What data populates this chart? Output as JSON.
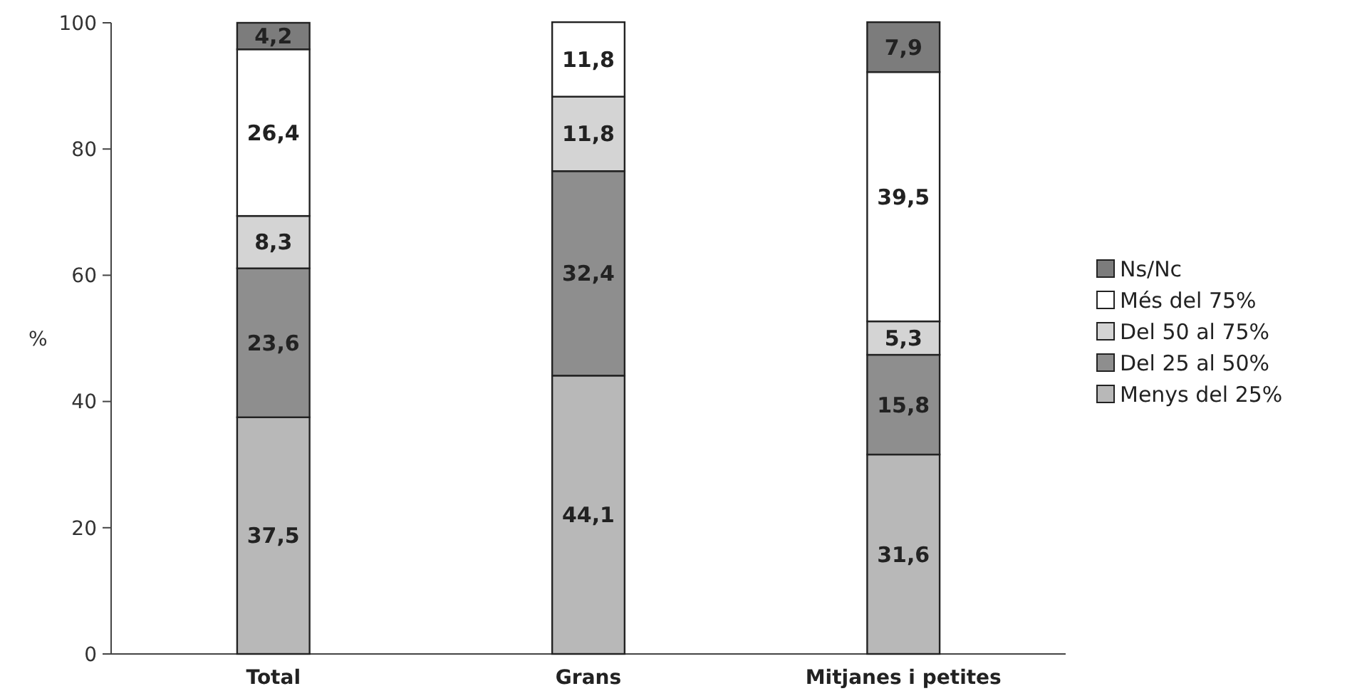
{
  "chart_data": {
    "type": "bar",
    "stacked": true,
    "ylabel": "%",
    "categories": [
      "Total",
      "Grans",
      "Mitjanes i petites"
    ],
    "ylim": [
      0,
      100
    ],
    "yticks": [
      0,
      20,
      40,
      60,
      80,
      100
    ],
    "grid": false,
    "legend": "right",
    "series": [
      {
        "name": "Menys del 25%",
        "color": "#b8b8b8",
        "values": [
          37.5,
          44.1,
          31.6
        ],
        "value_labels": [
          "37,5",
          "44,1",
          "31,6"
        ]
      },
      {
        "name": "Del 25 al 50%",
        "color": "#8e8e8e",
        "values": [
          23.6,
          32.4,
          15.8
        ],
        "value_labels": [
          "23,6",
          "32,4",
          "15,8"
        ]
      },
      {
        "name": "Del 50 al 75%",
        "color": "#d4d4d4",
        "values": [
          8.3,
          11.8,
          5.3
        ],
        "value_labels": [
          "8,3",
          "11,8",
          "5,3"
        ]
      },
      {
        "name": "Més del 75%",
        "color": "#ffffff",
        "values": [
          26.4,
          11.8,
          39.5
        ],
        "value_labels": [
          "26,4",
          "11,8",
          "39,5"
        ]
      },
      {
        "name": "Ns/Nc",
        "color": "#7c7c7c",
        "values": [
          4.2,
          null,
          7.9
        ],
        "value_labels": [
          "4,2",
          null,
          "7,9"
        ]
      }
    ]
  }
}
